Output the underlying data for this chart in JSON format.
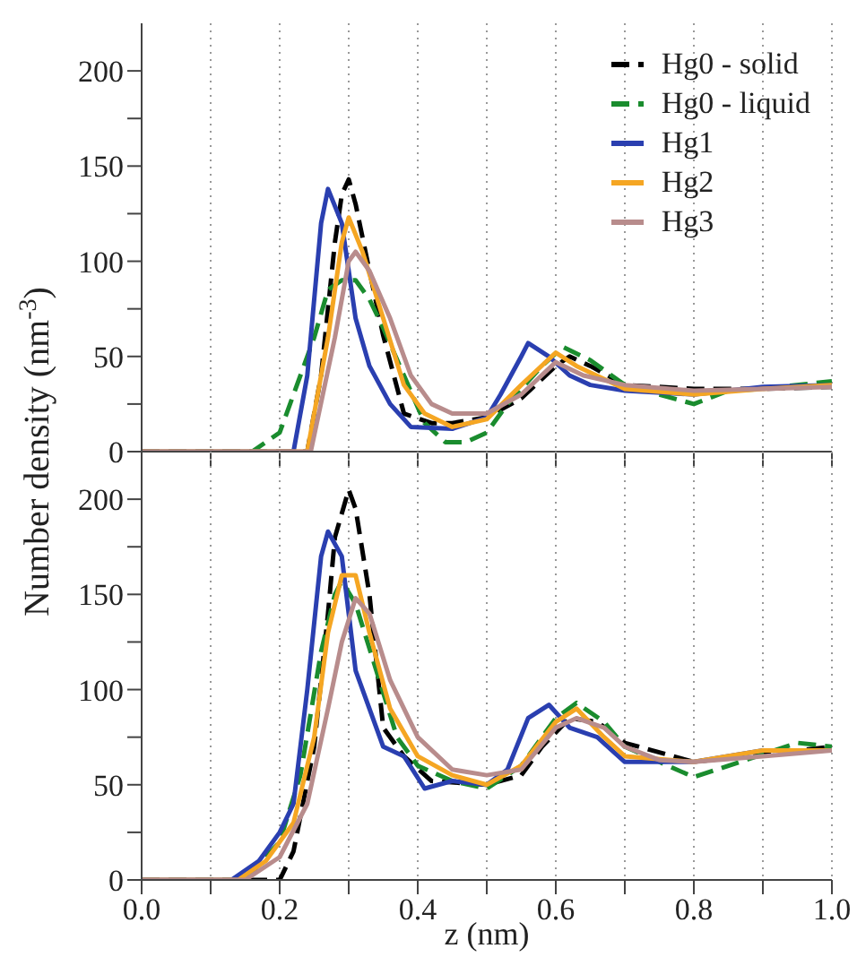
{
  "chart_data": [
    {
      "type": "line",
      "ylabel": "Number density (nm$^{-3}$)",
      "xlim": [
        0,
        1
      ],
      "ylim": [
        0,
        225
      ],
      "tick_labels": "y",
      "grid": "x",
      "legend": "top right",
      "xticks": [
        0,
        0.1,
        0.2,
        0.3,
        0.4,
        0.5,
        0.6,
        0.7,
        0.8,
        0.9,
        1
      ],
      "yticks": [
        0,
        {
          "value": 25,
          "label": null
        },
        50,
        {
          "value": 75,
          "label": null
        },
        100,
        {
          "value": 125,
          "label": null
        },
        150,
        {
          "value": 175,
          "label": null
        },
        200
      ],
      "series": [
        {
          "name": "Hg0 - solid",
          "color": "#000000",
          "line_style": "dashed",
          "x": [
            0,
            0.24,
            0.26,
            0.28,
            0.29,
            0.3,
            0.31,
            0.33,
            0.35,
            0.38,
            0.42,
            0.45,
            0.5,
            0.55,
            0.6,
            0.62,
            0.65,
            0.7,
            0.8,
            0.9,
            1
          ],
          "values": [
            0,
            0,
            40,
            110,
            135,
            143,
            130,
            95,
            61,
            20,
            15,
            15,
            18,
            28,
            45,
            50,
            45,
            35,
            33,
            33,
            34
          ]
        },
        {
          "name": "Hg0 - liquid",
          "color": "#1a8c2e",
          "line_style": "dashed",
          "x": [
            0,
            0.16,
            0.2,
            0.25,
            0.27,
            0.29,
            0.31,
            0.33,
            0.35,
            0.38,
            0.41,
            0.44,
            0.47,
            0.5,
            0.53,
            0.58,
            0.61,
            0.65,
            0.7,
            0.75,
            0.8,
            0.85,
            0.9,
            1
          ],
          "values": [
            0,
            0,
            10,
            60,
            85,
            90,
            90,
            80,
            65,
            40,
            15,
            5,
            5,
            10,
            25,
            45,
            55,
            48,
            35,
            30,
            25,
            32,
            33,
            37
          ]
        },
        {
          "name": "Hg1",
          "color": "#2a3fb0",
          "line_style": "solid",
          "x": [
            0,
            0.22,
            0.24,
            0.26,
            0.27,
            0.29,
            0.31,
            0.33,
            0.36,
            0.39,
            0.45,
            0.5,
            0.52,
            0.55,
            0.56,
            0.59,
            0.62,
            0.65,
            0.7,
            0.8,
            0.9,
            1
          ],
          "values": [
            0,
            0,
            40,
            120,
            138,
            120,
            70,
            45,
            25,
            13,
            12,
            18,
            30,
            50,
            57,
            50,
            40,
            35,
            32,
            30,
            34,
            35
          ]
        },
        {
          "name": "Hg2",
          "color": "#f5a623",
          "line_style": "solid",
          "x": [
            0,
            0.24,
            0.27,
            0.29,
            0.3,
            0.32,
            0.35,
            0.38,
            0.41,
            0.45,
            0.5,
            0.55,
            0.6,
            0.63,
            0.7,
            0.8,
            0.9,
            1
          ],
          "values": [
            0,
            0,
            60,
            110,
            123,
            105,
            70,
            35,
            20,
            13,
            17,
            35,
            52,
            45,
            33,
            30,
            33,
            35
          ]
        },
        {
          "name": "Hg3",
          "color": "#b88c8c",
          "line_style": "solid",
          "x": [
            0,
            0.245,
            0.28,
            0.3,
            0.31,
            0.33,
            0.36,
            0.39,
            0.42,
            0.45,
            0.5,
            0.55,
            0.6,
            0.64,
            0.7,
            0.8,
            0.9,
            1
          ],
          "values": [
            0,
            0,
            60,
            100,
            105,
            95,
            70,
            40,
            25,
            20,
            20,
            30,
            47,
            40,
            35,
            32,
            33,
            34
          ]
        }
      ]
    },
    {
      "type": "line",
      "xlabel": "z (nm)",
      "xlim": [
        0,
        1
      ],
      "ylim": [
        0,
        225
      ],
      "grid": "x",
      "xticks": [
        {
          "value": 0,
          "label": "0.0"
        },
        {
          "value": 0.1,
          "label": null
        },
        {
          "value": 0.2,
          "label": "0.2"
        },
        {
          "value": 0.3,
          "label": null
        },
        {
          "value": 0.4,
          "label": "0.4"
        },
        {
          "value": 0.5,
          "label": null
        },
        {
          "value": 0.6,
          "label": "0.6"
        },
        {
          "value": 0.7,
          "label": null
        },
        {
          "value": 0.8,
          "label": "0.8"
        },
        {
          "value": 0.9,
          "label": null
        },
        {
          "value": 1,
          "label": "1.0"
        }
      ],
      "yticks": [
        0,
        {
          "value": 25,
          "label": null
        },
        50,
        {
          "value": 75,
          "label": null
        },
        100,
        {
          "value": 125,
          "label": null
        },
        150,
        {
          "value": 175,
          "label": null
        },
        200
      ],
      "series": [
        {
          "color": "#000000",
          "line_style": "dashed",
          "x": [
            0,
            0.2,
            0.22,
            0.25,
            0.27,
            0.28,
            0.3,
            0.31,
            0.33,
            0.35,
            0.38,
            0.42,
            0.5,
            0.55,
            0.58,
            0.62,
            0.66,
            0.7,
            0.8,
            0.9,
            1
          ],
          "values": [
            0,
            0,
            15,
            70,
            140,
            180,
            205,
            195,
            150,
            80,
            65,
            52,
            50,
            55,
            70,
            85,
            83,
            72,
            62,
            66,
            70
          ]
        },
        {
          "color": "#1a8c2e",
          "line_style": "dashed",
          "x": [
            0,
            0.15,
            0.2,
            0.23,
            0.26,
            0.28,
            0.29,
            0.31,
            0.34,
            0.37,
            0.4,
            0.45,
            0.5,
            0.55,
            0.6,
            0.63,
            0.67,
            0.7,
            0.75,
            0.8,
            0.85,
            0.9,
            0.95,
            1
          ],
          "values": [
            0,
            0,
            20,
            55,
            120,
            150,
            157,
            145,
            110,
            75,
            60,
            52,
            48,
            60,
            85,
            93,
            83,
            70,
            62,
            54,
            60,
            66,
            72,
            70
          ]
        },
        {
          "color": "#2a3fb0",
          "line_style": "solid",
          "x": [
            0,
            0.13,
            0.17,
            0.2,
            0.22,
            0.24,
            0.26,
            0.27,
            0.29,
            0.3,
            0.31,
            0.33,
            0.35,
            0.38,
            0.41,
            0.45,
            0.5,
            0.53,
            0.56,
            0.59,
            0.62,
            0.66,
            0.7,
            0.8,
            0.9,
            1
          ],
          "values": [
            0,
            0,
            10,
            25,
            40,
            100,
            170,
            183,
            170,
            140,
            110,
            90,
            70,
            65,
            48,
            52,
            50,
            58,
            85,
            92,
            80,
            75,
            62,
            62,
            68,
            68
          ]
        },
        {
          "color": "#f5a623",
          "line_style": "solid",
          "x": [
            0,
            0.14,
            0.18,
            0.22,
            0.25,
            0.27,
            0.29,
            0.31,
            0.33,
            0.36,
            0.4,
            0.45,
            0.5,
            0.55,
            0.6,
            0.63,
            0.67,
            0.7,
            0.8,
            0.9,
            1
          ],
          "values": [
            0,
            0,
            10,
            30,
            75,
            130,
            160,
            160,
            130,
            90,
            65,
            55,
            50,
            60,
            83,
            90,
            75,
            65,
            62,
            68,
            68
          ]
        },
        {
          "color": "#b88c8c",
          "line_style": "solid",
          "x": [
            0,
            0.15,
            0.2,
            0.24,
            0.27,
            0.29,
            0.31,
            0.33,
            0.36,
            0.4,
            0.45,
            0.5,
            0.55,
            0.6,
            0.63,
            0.67,
            0.7,
            0.75,
            0.8,
            0.9,
            1
          ],
          "values": [
            0,
            0,
            12,
            40,
            90,
            125,
            148,
            140,
            105,
            75,
            58,
            55,
            58,
            80,
            85,
            80,
            70,
            63,
            62,
            65,
            68
          ]
        }
      ]
    }
  ]
}
